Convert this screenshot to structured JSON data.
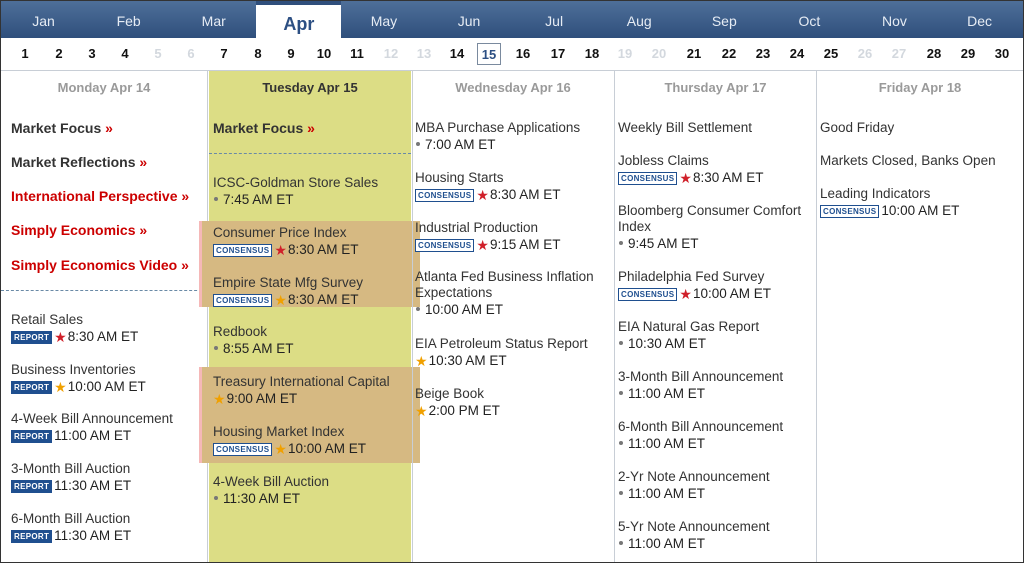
{
  "months": [
    "Jan",
    "Feb",
    "Mar",
    "Apr",
    "May",
    "Jun",
    "Jul",
    "Aug",
    "Sep",
    "Oct",
    "Nov",
    "Dec"
  ],
  "active_month": "Apr",
  "days": [
    {
      "n": "1"
    },
    {
      "n": "2"
    },
    {
      "n": "3"
    },
    {
      "n": "4"
    },
    {
      "n": "5",
      "weekend": true
    },
    {
      "n": "6",
      "weekend": true
    },
    {
      "n": "7"
    },
    {
      "n": "8"
    },
    {
      "n": "9"
    },
    {
      "n": "10"
    },
    {
      "n": "11"
    },
    {
      "n": "12",
      "weekend": true
    },
    {
      "n": "13",
      "weekend": true
    },
    {
      "n": "14"
    },
    {
      "n": "15",
      "current": true
    },
    {
      "n": "16"
    },
    {
      "n": "17"
    },
    {
      "n": "18"
    },
    {
      "n": "19",
      "weekend": true
    },
    {
      "n": "20",
      "weekend": true
    },
    {
      "n": "21"
    },
    {
      "n": "22"
    },
    {
      "n": "23"
    },
    {
      "n": "24"
    },
    {
      "n": "25"
    },
    {
      "n": "26",
      "weekend": true
    },
    {
      "n": "27",
      "weekend": true
    },
    {
      "n": "28"
    },
    {
      "n": "29"
    },
    {
      "n": "30"
    }
  ],
  "columns": {
    "mon": {
      "header": "Monday Apr 14",
      "links": [
        "Market Focus",
        "Market Reflections",
        "International Perspective",
        "Simply Economics",
        "Simply Economics Video"
      ],
      "arrow": "»",
      "events": [
        {
          "title": "Retail Sales",
          "badge": "REPORT",
          "star": "red",
          "time": "8:30 AM ET"
        },
        {
          "title": "Business Inventories",
          "badge": "REPORT",
          "star": "gold",
          "time": "10:00 AM ET"
        },
        {
          "title": "4-Week Bill Announcement",
          "badge": "REPORT",
          "time": "11:00 AM ET"
        },
        {
          "title": "3-Month Bill Auction",
          "badge": "REPORT",
          "time": "11:30 AM ET"
        },
        {
          "title": "6-Month Bill Auction",
          "badge": "REPORT",
          "time": "11:30 AM ET"
        }
      ]
    },
    "tue": {
      "header": "Tuesday Apr 15",
      "link": "Market Focus",
      "events": [
        {
          "title": "ICSC-Goldman Store Sales",
          "time": "7:45 AM ET"
        },
        {
          "title": "Consumer Price Index",
          "badge": "CONSENSUS",
          "star": "red",
          "time": "8:30 AM ET"
        },
        {
          "title": "Empire State Mfg Survey",
          "badge": "CONSENSUS",
          "star": "gold",
          "time": "8:30 AM ET"
        },
        {
          "title": "Redbook",
          "time": "8:55 AM ET"
        },
        {
          "title": "Treasury International Capital",
          "star": "gold",
          "time": "9:00 AM ET"
        },
        {
          "title": "Housing Market Index",
          "badge": "CONSENSUS",
          "star": "gold",
          "time": "10:00 AM ET"
        },
        {
          "title": "4-Week Bill Auction",
          "time": "11:30 AM ET"
        }
      ]
    },
    "wed": {
      "header": "Wednesday Apr 16",
      "events": [
        {
          "title": "MBA Purchase Applications",
          "time": "7:00 AM ET"
        },
        {
          "title": "Housing Starts",
          "badge": "CONSENSUS",
          "star": "red",
          "time": "8:30 AM ET"
        },
        {
          "title": "Industrial Production",
          "badge": "CONSENSUS",
          "star": "red",
          "time": "9:15 AM ET"
        },
        {
          "title": "Atlanta Fed Business Inflation Expectations",
          "time": "10:00 AM ET"
        },
        {
          "title": "EIA Petroleum Status Report",
          "star": "gold",
          "time": "10:30 AM ET"
        },
        {
          "title": "Beige Book",
          "star": "gold",
          "time": "2:00 PM ET"
        }
      ]
    },
    "thu": {
      "header": "Thursday Apr 17",
      "events": [
        {
          "title": "Weekly Bill Settlement"
        },
        {
          "title": "Jobless Claims",
          "badge": "CONSENSUS",
          "star": "red",
          "time": "8:30 AM ET"
        },
        {
          "title": "Bloomberg Consumer Comfort Index",
          "time": "9:45 AM ET"
        },
        {
          "title": "Philadelphia Fed Survey",
          "badge": "CONSENSUS",
          "star": "red",
          "time": "10:00 AM ET"
        },
        {
          "title": "EIA Natural Gas Report",
          "time": "10:30 AM ET"
        },
        {
          "title": "3-Month Bill Announcement",
          "time": "11:00 AM ET"
        },
        {
          "title": "6-Month Bill Announcement",
          "time": "11:00 AM ET"
        },
        {
          "title": "2-Yr Note Announcement",
          "time": "11:00 AM ET"
        },
        {
          "title": "5-Yr Note Announcement",
          "time": "11:00 AM ET"
        }
      ]
    },
    "fri": {
      "header": "Friday Apr 18",
      "events": [
        {
          "title": "Good Friday"
        },
        {
          "title": "Markets Closed, Banks Open"
        },
        {
          "title": "Leading Indicators",
          "badge": "CONSENSUS",
          "time": "10:00 AM ET"
        }
      ]
    }
  },
  "icons": {
    "star": "★",
    "bullet": "dot"
  },
  "colors": {
    "month_bar": "#3c5e8a",
    "today_column": "#dcdd85",
    "highlight": "#d6b982",
    "link_red": "#cc0000",
    "badge_blue": "#1f4f8f",
    "star_red": "#d0202a",
    "star_gold": "#f0a000"
  }
}
